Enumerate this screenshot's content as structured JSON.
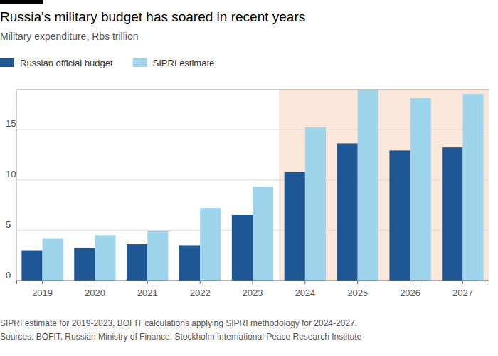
{
  "chart_data": {
    "type": "bar",
    "title": "Russia's military budget has soared in recent years",
    "subtitle": "Military expenditure, Rbs trillion",
    "categories": [
      "2019",
      "2020",
      "2021",
      "2022",
      "2023",
      "2024",
      "2025",
      "2026",
      "2027"
    ],
    "series": [
      {
        "name": "Russian official budget",
        "color": "#1f5794",
        "values": [
          3.0,
          3.2,
          3.6,
          3.5,
          6.5,
          10.8,
          13.6,
          12.9,
          13.2
        ]
      },
      {
        "name": "SIPRI estimate",
        "color": "#9fd5ec",
        "values": [
          4.2,
          4.5,
          4.9,
          7.2,
          9.3,
          15.2,
          18.9,
          18.1,
          18.5
        ]
      }
    ],
    "ylim": [
      0,
      19
    ],
    "yticks": [
      0,
      5,
      10,
      15
    ],
    "grid": true,
    "legend": "top-left",
    "highlight": {
      "from": "2024",
      "to": "2027",
      "color": "#fce8da"
    },
    "notes": [
      "SIPRI estimate for 2019-2023, BOFIT calculations applying SIPRI methodology for 2024-2027.",
      "Sources: BOFIT, Russian Ministry of Finance, Stockholm International Peace Research Institute"
    ]
  }
}
